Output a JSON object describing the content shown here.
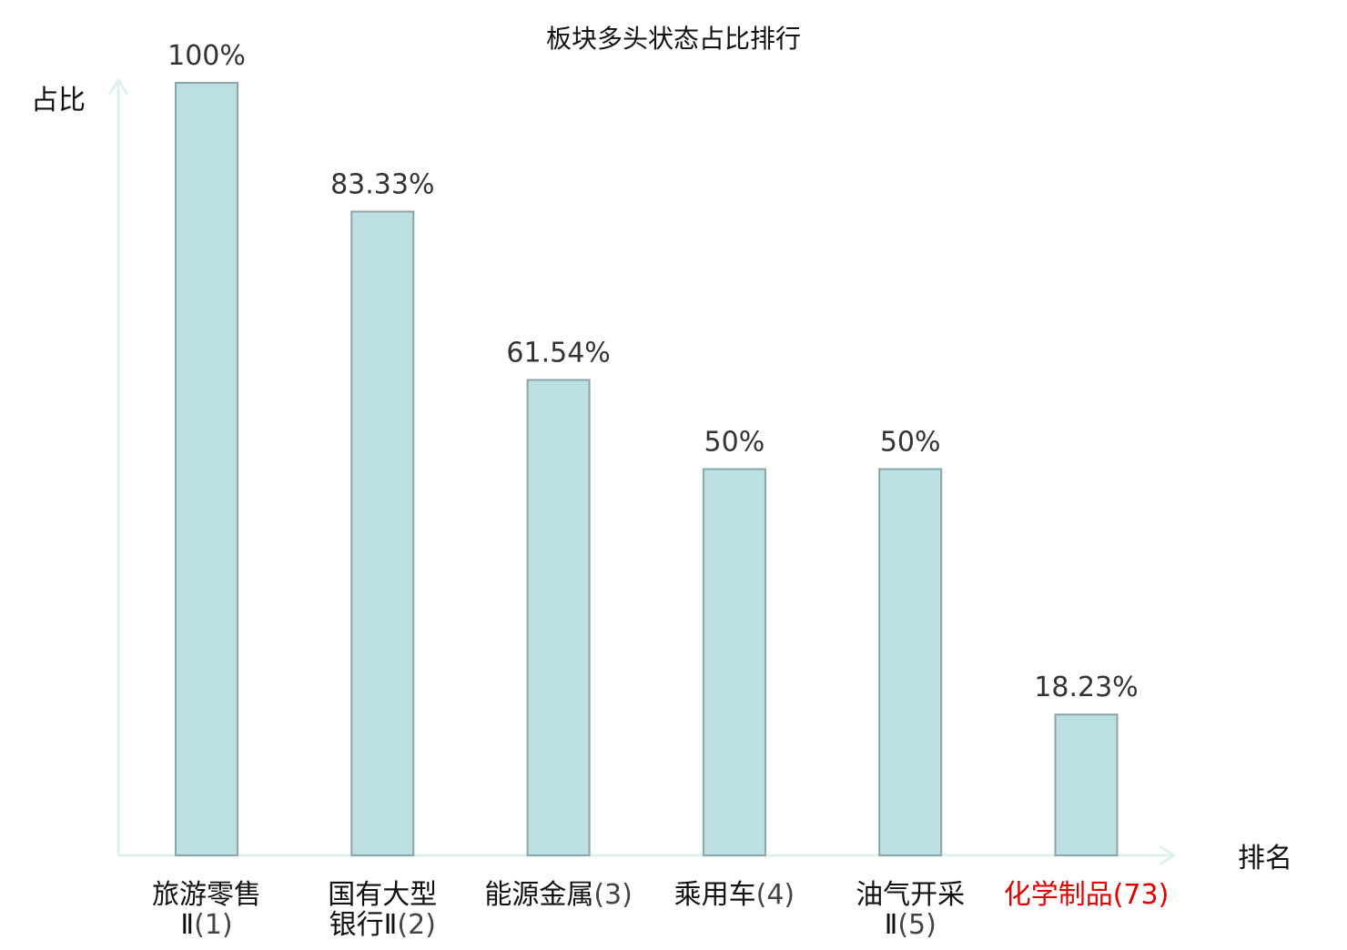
{
  "chart_data": {
    "type": "bar",
    "title": "板块多头状态占比排行",
    "ylabel": "占比",
    "xlabel": "排名",
    "ylim": [
      0,
      100
    ],
    "grid": false,
    "categories": [
      {
        "name_lines": [
          "旅游零售",
          "Ⅱ"
        ],
        "rank": "(1)",
        "highlight": false
      },
      {
        "name_lines": [
          "国有大型",
          "银行Ⅱ"
        ],
        "rank": "(2)",
        "highlight": false
      },
      {
        "name_lines": [
          "能源金属"
        ],
        "rank": "(3)",
        "highlight": false
      },
      {
        "name_lines": [
          "乘用车"
        ],
        "rank": "(4)",
        "highlight": false
      },
      {
        "name_lines": [
          "油气开采",
          "Ⅱ"
        ],
        "rank": "(5)",
        "highlight": false
      },
      {
        "name_lines": [
          "化学制品"
        ],
        "rank": "(73)",
        "highlight": true
      }
    ],
    "values": [
      100,
      83.33,
      61.54,
      50,
      50,
      18.23
    ],
    "value_labels": [
      "100%",
      "83.33%",
      "61.54%",
      "50%",
      "50%",
      "18.23%"
    ],
    "colors": {
      "bar_fill": "#bce0e2",
      "bar_stroke": "#8aa6aa",
      "axis": "#dff1ef",
      "text": "#111111",
      "value_label": "#333333",
      "rank_text": "#444444",
      "highlight": "#e00000"
    }
  }
}
